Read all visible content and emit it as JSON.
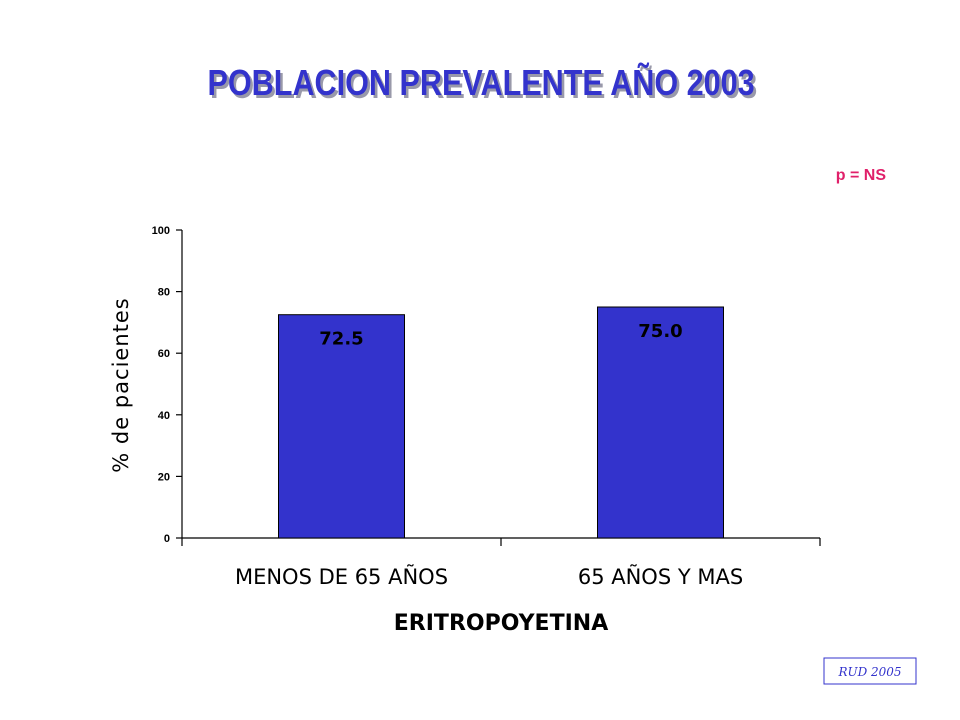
{
  "chart_data": {
    "type": "bar",
    "title": "POBLACION PREVALENTE AÑO 2003",
    "annotation": "p = NS",
    "xlabel": "ERITROPOYETINA",
    "ylabel": "% de pacientes",
    "categories": [
      "MENOS DE 65 AÑOS",
      "65 AÑOS Y MAS"
    ],
    "values": [
      72.5,
      75.0
    ],
    "data_labels": [
      "72.5",
      "75.0"
    ],
    "ylim": [
      0,
      100
    ],
    "yticks": [
      0,
      20,
      40,
      60,
      80,
      100
    ],
    "ytick_labels": [
      "0",
      "20",
      "40",
      "60",
      "80",
      "100"
    ],
    "grid": false,
    "legend": "none"
  },
  "source": "RUD 2005",
  "colors": {
    "bar": "#3333cc",
    "title": "#3333cc",
    "title_shadow": "#9999aa",
    "annotation": "#e0206a",
    "source_border": "#3333cc"
  }
}
